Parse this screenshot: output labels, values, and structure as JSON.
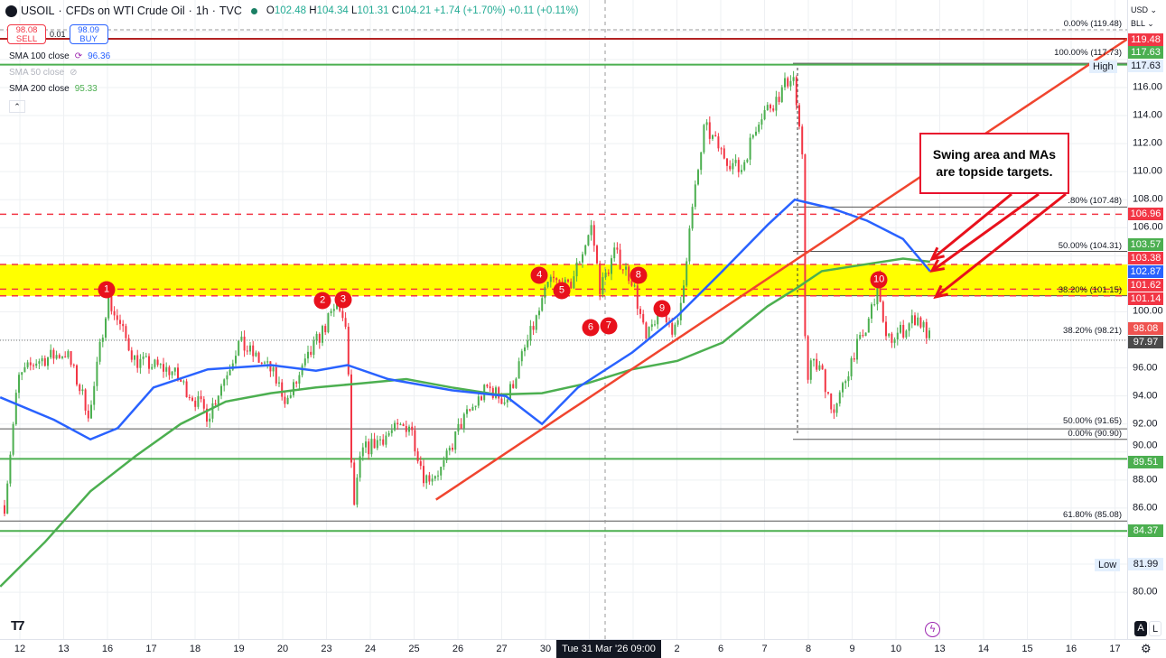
{
  "header": {
    "symbol": "USOIL",
    "description": "CFDs on WTI Crude Oil",
    "interval": "1h",
    "source": "TVC",
    "o_label": "O",
    "o": "102.48",
    "h_label": "H",
    "h": "104.34",
    "l_label": "L",
    "l": "101.31",
    "c_label": "C",
    "c": "104.21",
    "change": "+1.74 (+1.70%)",
    "ext_change": "+0.11 (+0.11%)"
  },
  "trade": {
    "sell_price": "98.08",
    "sell_label": "SELL",
    "spread": "0.01",
    "buy_price": "98.09",
    "buy_label": "BUY"
  },
  "legend": [
    {
      "label": "SMA 100 close",
      "value": "96.36",
      "color": "#2962ff"
    },
    {
      "label": "SMA 50 close",
      "value": "",
      "color": "#b2b5be"
    },
    {
      "label": "SMA 200 close",
      "value": "95.33",
      "color": "#4caf50"
    }
  ],
  "currency": {
    "currency": "USD",
    "unit": "BLL"
  },
  "y_ticks": [
    "116.00",
    "114.00",
    "112.00",
    "110.00",
    "108.00",
    "106.00",
    "100.00",
    "96.00",
    "94.00",
    "92.00",
    "90.00",
    "88.00",
    "86.00",
    "80.00"
  ],
  "price_labels": [
    {
      "value": "119.48",
      "color": "#f23645"
    },
    {
      "value": "117.63",
      "color": "#4caf50"
    },
    {
      "value": "117.63",
      "color": "#e3effd",
      "text": "#131722"
    },
    {
      "value": "106.96",
      "color": "#f23645"
    },
    {
      "value": "103.57",
      "color": "#4caf50"
    },
    {
      "value": "103.38",
      "color": "#f23645"
    },
    {
      "value": "102.87",
      "color": "#2962ff"
    },
    {
      "value": "101.62",
      "color": "#f23645"
    },
    {
      "value": "101.14",
      "color": "#f23645"
    },
    {
      "value": "98.08",
      "color": "#ef5350"
    },
    {
      "value": "97.97",
      "color": "#4a4a4a"
    },
    {
      "value": "89.51",
      "color": "#4caf50"
    },
    {
      "value": "84.37",
      "color": "#4caf50"
    },
    {
      "value": "81.99",
      "color": "#e3effd",
      "text": "#131722"
    }
  ],
  "high_label": "High",
  "low_label": "Low",
  "x_ticks": [
    "12",
    "13",
    "16",
    "17",
    "18",
    "19",
    "20",
    "23",
    "24",
    "25",
    "26",
    "27",
    "30",
    "31",
    "1",
    "2",
    "6",
    "7",
    "8",
    "9",
    "10",
    "13",
    "14",
    "15",
    "16",
    "17"
  ],
  "crosshair_time": "Tue 31 Mar '26   09:00",
  "fib_labels": [
    {
      "text": "0.00% (119.48)",
      "price": 119.48
    },
    {
      "text": "100.00% (117.73)",
      "price": 117.73
    },
    {
      "text": ".80% (107.48)",
      "price": 107.48
    },
    {
      "text": "50.00% (104.31)",
      "price": 104.31
    },
    {
      "text": "38.20% (101.15)",
      "price": 101.15
    },
    {
      "text": "38.20% (98.21)",
      "price": 98.21
    },
    {
      "text": "50.00% (91.65)",
      "price": 91.65
    },
    {
      "text": "0.00% (90.90)",
      "price": 90.9
    },
    {
      "text": "61.80% (85.08)",
      "price": 85.08
    }
  ],
  "annotation": {
    "line1": "Swing area and MAs",
    "line2": "are topside targets."
  },
  "markers": [
    "1",
    "2",
    "3",
    "4",
    "5",
    "6",
    "7",
    "8",
    "9",
    "10"
  ],
  "auto_label": "A",
  "log_label": "L",
  "colors": {
    "up": "#4caf50",
    "down": "#f23645",
    "sma100": "#2962ff",
    "sma200": "#4caf50",
    "zone": "#ffff00",
    "trend": "#f0452f"
  },
  "chart_data": {
    "type": "candlestick",
    "ylim": [
      78.5,
      120.5
    ],
    "x_unit": "trading-day index (0 = 12)",
    "close_path": [
      [
        -0.35,
        86.2
      ],
      [
        -0.04,
        95.2
      ],
      [
        0.37,
        96.5
      ],
      [
        1.06,
        97.1
      ],
      [
        1.6,
        92.6
      ],
      [
        2.0,
        101.0
      ],
      [
        2.64,
        96.5
      ],
      [
        3.46,
        95.8
      ],
      [
        4.3,
        92.6
      ],
      [
        5.0,
        97.8
      ],
      [
        5.73,
        95.8
      ],
      [
        6.1,
        93.6
      ],
      [
        6.76,
        97.8
      ],
      [
        7.28,
        100.7
      ],
      [
        7.48,
        97.8
      ],
      [
        7.6,
        85.5
      ],
      [
        7.8,
        90.0
      ],
      [
        8.4,
        91.3
      ],
      [
        8.9,
        92.0
      ],
      [
        9.24,
        88.1
      ],
      [
        9.65,
        88.8
      ],
      [
        10.06,
        92.0
      ],
      [
        10.68,
        94.6
      ],
      [
        11.1,
        93.6
      ],
      [
        11.5,
        97.1
      ],
      [
        11.9,
        100.4
      ],
      [
        12.1,
        102.3
      ],
      [
        12.53,
        101.6
      ],
      [
        13.05,
        106.1
      ],
      [
        13.25,
        101.6
      ],
      [
        13.57,
        104.2
      ],
      [
        13.98,
        102.3
      ],
      [
        14.3,
        97.8
      ],
      [
        14.6,
        100.4
      ],
      [
        15.0,
        98.4
      ],
      [
        15.3,
        106.1
      ],
      [
        15.63,
        113.2
      ],
      [
        16.04,
        111.3
      ],
      [
        16.45,
        110.0
      ],
      [
        16.87,
        113.9
      ],
      [
        17.28,
        115.2
      ],
      [
        17.65,
        117.1
      ],
      [
        17.86,
        110.7
      ],
      [
        17.96,
        92.0
      ],
      [
        18.0,
        96.5
      ],
      [
        18.3,
        95.8
      ],
      [
        18.6,
        92.6
      ],
      [
        19.03,
        97.1
      ],
      [
        19.3,
        98.4
      ],
      [
        19.6,
        102.3
      ],
      [
        19.75,
        97.8
      ],
      [
        20.16,
        98.7
      ],
      [
        20.47,
        99.7
      ],
      [
        20.78,
        98.08
      ]
    ],
    "sma100": [
      [
        -0.45,
        93.9
      ],
      [
        0.78,
        92.3
      ],
      [
        1.61,
        90.9
      ],
      [
        2.23,
        91.7
      ],
      [
        3.05,
        94.6
      ],
      [
        4.29,
        95.9
      ],
      [
        5.73,
        96.2
      ],
      [
        6.76,
        95.8
      ],
      [
        7.48,
        96.2
      ],
      [
        8.41,
        95.2
      ],
      [
        9.86,
        94.4
      ],
      [
        11.09,
        94.0
      ],
      [
        11.92,
        92.0
      ],
      [
        12.74,
        94.6
      ],
      [
        13.98,
        97.1
      ],
      [
        15.01,
        99.7
      ],
      [
        16.04,
        102.9
      ],
      [
        17.07,
        106.2
      ],
      [
        17.69,
        108.0
      ],
      [
        18.52,
        107.4
      ],
      [
        19.34,
        106.5
      ],
      [
        20.16,
        105.2
      ],
      [
        20.78,
        102.9
      ]
    ],
    "sma200": [
      [
        -0.45,
        80.4
      ],
      [
        0.58,
        83.6
      ],
      [
        1.61,
        87.2
      ],
      [
        2.64,
        89.7
      ],
      [
        3.67,
        92.0
      ],
      [
        4.7,
        93.6
      ],
      [
        5.73,
        94.2
      ],
      [
        6.76,
        94.6
      ],
      [
        7.79,
        94.9
      ],
      [
        8.82,
        95.2
      ],
      [
        9.86,
        94.6
      ],
      [
        10.89,
        94.1
      ],
      [
        11.92,
        94.2
      ],
      [
        12.95,
        94.9
      ],
      [
        13.98,
        95.9
      ],
      [
        15.01,
        96.5
      ],
      [
        16.04,
        97.8
      ],
      [
        17.07,
        100.4
      ],
      [
        17.69,
        101.6
      ],
      [
        18.31,
        102.9
      ],
      [
        19.13,
        103.3
      ],
      [
        20.16,
        103.8
      ],
      [
        20.78,
        103.57
      ]
    ],
    "markers_at": [
      [
        1.98,
        101.6
      ],
      [
        6.91,
        100.8
      ],
      [
        7.38,
        100.9
      ],
      [
        11.86,
        102.6
      ],
      [
        12.37,
        101.5
      ],
      [
        13.03,
        98.9
      ],
      [
        13.44,
        99.0
      ],
      [
        14.12,
        102.6
      ],
      [
        14.66,
        100.2
      ],
      [
        19.61,
        102.3
      ]
    ],
    "horizontal_levels": {
      "red_solid": [
        119.48
      ],
      "green_solid": [
        117.63,
        89.51,
        84.37
      ],
      "red_dashed": [
        106.96,
        103.38,
        101.62,
        101.14
      ],
      "zone": [
        101.14,
        103.38
      ]
    },
    "trendline": [
      [
        9.5,
        86.6
      ],
      [
        25.3,
        119.5
      ]
    ],
    "high": 117.63,
    "low": 81.99
  }
}
